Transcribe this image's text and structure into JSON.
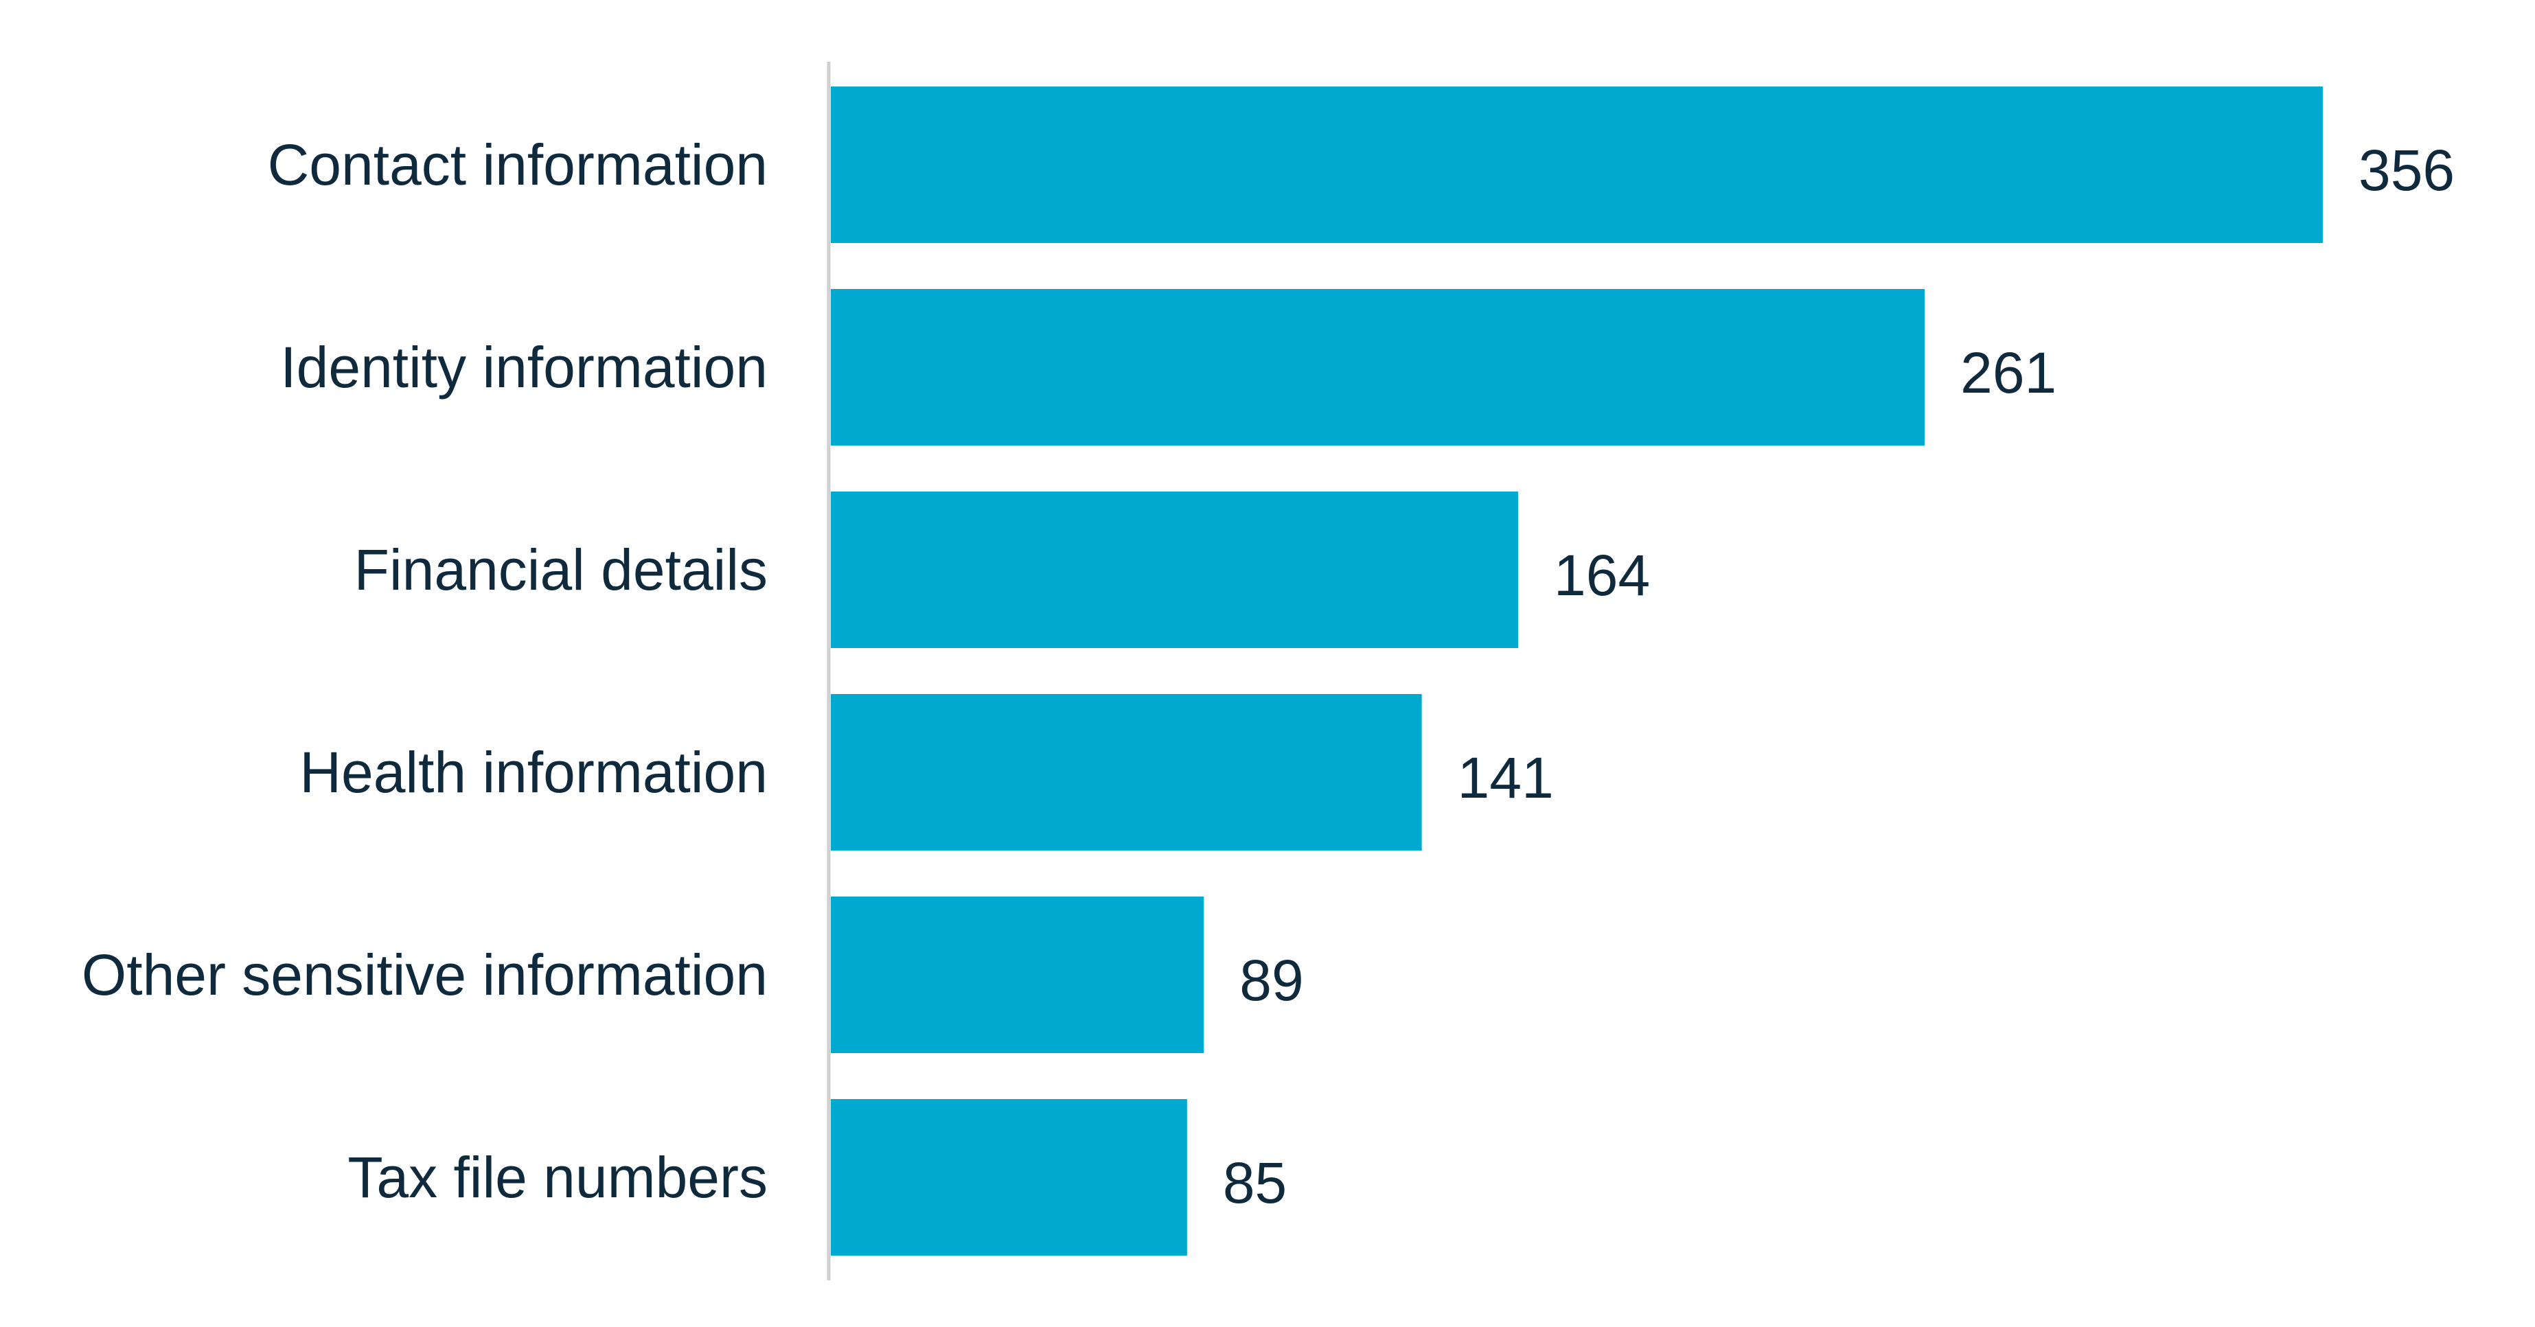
{
  "chart_data": {
    "type": "bar",
    "orientation": "horizontal",
    "categories": [
      "Contact information",
      "Identity information",
      "Financial details",
      "Health information",
      "Other sensitive information",
      "Tax file numbers"
    ],
    "values": [
      356,
      261,
      164,
      141,
      89,
      85
    ],
    "data_labels": [
      "356",
      "261",
      "164",
      "141",
      "89",
      "85"
    ],
    "title": "",
    "xlabel": "",
    "ylabel": "",
    "xlim": [
      0,
      356
    ],
    "grid": false,
    "legend": "none",
    "bar_color": "#00a9d0",
    "text_color": "#0f2a3d",
    "axis_color": "#cfcfcf"
  }
}
